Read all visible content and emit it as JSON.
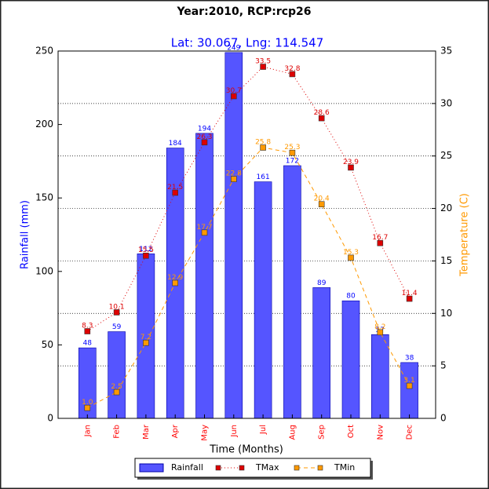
{
  "chart_data": {
    "type": "bar",
    "title": "Year:2010, RCP:rcp26",
    "subtitle": "Lat: 30.067, Lng: 114.547",
    "x_label": "Time (Months)",
    "y_label": "Rainfall (mm)",
    "y2_label": "Temperature (C)",
    "categories": [
      "Jan",
      "Feb",
      "Mar",
      "Apr",
      "May",
      "Jun",
      "Jul",
      "Aug",
      "Sep",
      "Oct",
      "Nov",
      "Dec"
    ],
    "series": [
      {
        "name": "Rainfall",
        "type": "bar",
        "color": "#5555ff",
        "values": [
          48,
          59,
          112,
          184,
          194,
          249,
          161,
          172,
          89,
          80,
          57,
          38
        ]
      },
      {
        "name": "TMax",
        "type": "line",
        "axis": "y2",
        "color": "#dd0000",
        "linestyle": "dotted",
        "values": [
          8.3,
          10.1,
          15.5,
          21.5,
          26.3,
          30.7,
          33.5,
          32.8,
          28.6,
          23.9,
          16.7,
          11.4
        ]
      },
      {
        "name": "TMin",
        "type": "line",
        "axis": "y2",
        "color": "#ff9900",
        "linestyle": "dashed",
        "values": [
          1,
          2.5,
          7.2,
          12.9,
          17.7,
          22.8,
          25.8,
          25.3,
          20.4,
          15.3,
          8.2,
          3.1
        ],
        "value_labels": [
          "1.0",
          "2.5",
          "7.2",
          "12.9",
          "17.7",
          "22.8",
          "25.8",
          "25.3",
          "20.4",
          "15.3",
          "8.2",
          "3.1"
        ]
      }
    ],
    "ylim": [
      0,
      250
    ],
    "yticks": [
      0,
      50,
      100,
      150,
      200,
      250
    ],
    "y2lim": [
      0,
      35
    ],
    "y2ticks": [
      0,
      5,
      10,
      15,
      20,
      25,
      30,
      35
    ],
    "grid": true,
    "legend": "bottom"
  }
}
